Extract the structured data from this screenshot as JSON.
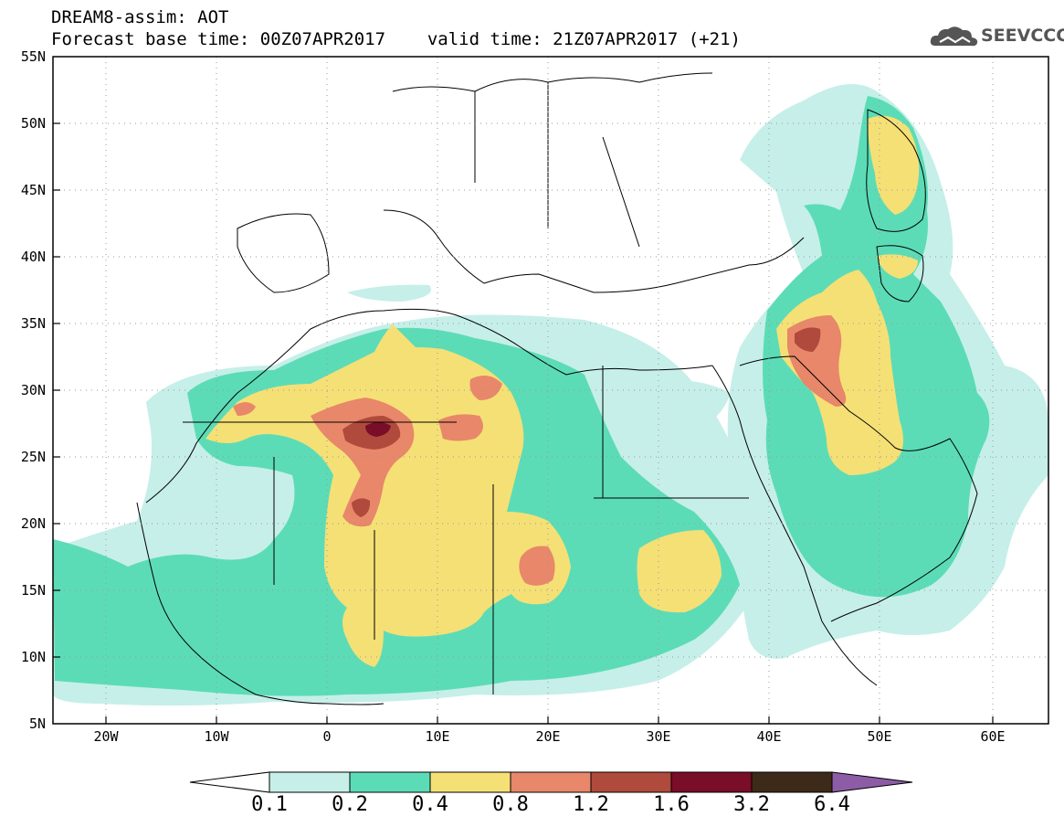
{
  "header": {
    "title": "DREAM8-assim: AOT",
    "base_time": "Forecast base time: 00Z07APR2017",
    "valid_time": "valid time: 21Z07APR2017 (+21)"
  },
  "logo": {
    "text": "SEEVCCC",
    "icon": "cloud-icon"
  },
  "map": {
    "lat_labels": [
      "55N",
      "50N",
      "45N",
      "40N",
      "35N",
      "30N",
      "25N",
      "20N",
      "15N",
      "10N",
      "5N"
    ],
    "lon_labels": [
      "20W",
      "10W",
      "0",
      "10E",
      "20E",
      "30E",
      "40E",
      "50E",
      "60E"
    ],
    "extent": {
      "lon": [
        -25,
        65
      ],
      "lat": [
        5,
        55
      ]
    }
  },
  "legend": {
    "labels": [
      "0.1",
      "0.2",
      "0.4",
      "0.8",
      "1.2",
      "1.6",
      "3.2",
      "6.4"
    ],
    "colors": [
      "#ffffff",
      "#c6efe9",
      "#5cdcb6",
      "#f5e076",
      "#e8876a",
      "#b04a3c",
      "#7a0d27",
      "#3e2a18",
      "#8c5da6"
    ]
  }
}
